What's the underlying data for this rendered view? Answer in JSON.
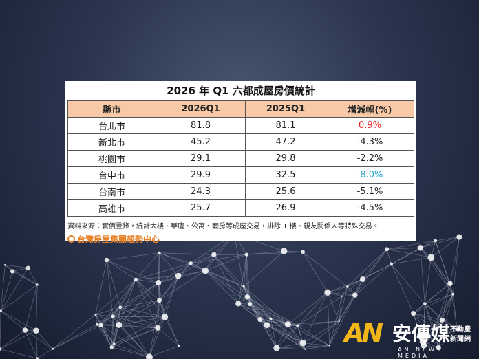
{
  "title": "2026 年 Q1  六都成屋房價統計",
  "table": {
    "header": [
      "縣市",
      "2026Q1",
      "2025Q1",
      "增減幅(%)"
    ],
    "rows": [
      [
        "台北市",
        "81.8",
        "81.1",
        "0.9%"
      ],
      [
        "新北市",
        "45.2",
        "47.2",
        "-4.3%"
      ],
      [
        "桃園市",
        "29.1",
        "29.8",
        "-2.2%"
      ],
      [
        "台中市",
        "29.9",
        "32.5",
        "-8.0%"
      ],
      [
        "台南市",
        "24.3",
        "25.6",
        "-5.1%"
      ],
      [
        "高雄市",
        "25.7",
        "26.9",
        "-4.5%"
      ]
    ]
  },
  "footnote": "資料來源：實價登錄，統計大樓、華廈、公寓、套房等成屋交易，排除 1 樓、親友關係人等特殊交易。",
  "source_logo": "台灣房屋集團趨勢中心",
  "watermark": {
    "mark": "AN",
    "brand": "安傳媒",
    "tag_line1": "不動產",
    "tag_line2": "新聞網",
    "english": "AN NEWS MEDIA"
  }
}
